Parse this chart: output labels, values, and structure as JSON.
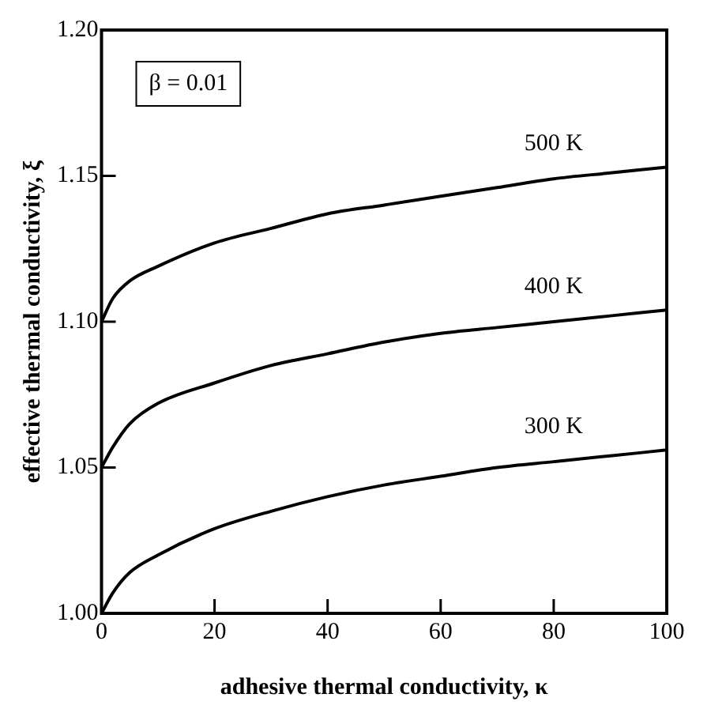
{
  "chart_data": {
    "type": "line",
    "xlabel": "adhesive thermal conductivity, κ",
    "ylabel": "effective thermal conductivity, ξ",
    "xlim": [
      0,
      100
    ],
    "xticks": [
      0,
      20,
      40,
      60,
      80,
      100
    ],
    "ylim": [
      1.0,
      1.2
    ],
    "yticks": [
      {
        "value": 1.0,
        "label": "1.00"
      },
      {
        "value": 1.05,
        "label": "1.05"
      },
      {
        "value": 1.1,
        "label": "1.10"
      },
      {
        "value": 1.15,
        "label": "1.15"
      },
      {
        "value": 1.2,
        "label": "1.20"
      }
    ],
    "grid": false,
    "legend": false,
    "marker": "none",
    "line_style": "solid",
    "series": [
      {
        "name": "300 K",
        "color": "#000000",
        "x": [
          0,
          2,
          5,
          10,
          20,
          30,
          40,
          50,
          60,
          70,
          80,
          90,
          100
        ],
        "values": [
          1.0,
          1.007,
          1.014,
          1.02,
          1.029,
          1.035,
          1.04,
          1.044,
          1.047,
          1.05,
          1.052,
          1.054,
          1.056
        ]
      },
      {
        "name": "400 K",
        "color": "#000000",
        "x": [
          0,
          2,
          5,
          10,
          20,
          30,
          40,
          50,
          60,
          70,
          80,
          90,
          100
        ],
        "values": [
          1.05,
          1.057,
          1.065,
          1.072,
          1.079,
          1.085,
          1.089,
          1.093,
          1.096,
          1.098,
          1.1,
          1.102,
          1.104
        ]
      },
      {
        "name": "500 K",
        "color": "#000000",
        "x": [
          0,
          2,
          5,
          10,
          20,
          30,
          40,
          50,
          60,
          70,
          80,
          90,
          100
        ],
        "values": [
          1.1,
          1.108,
          1.114,
          1.119,
          1.127,
          1.132,
          1.137,
          1.14,
          1.143,
          1.146,
          1.149,
          1.151,
          1.153
        ]
      }
    ],
    "annotations": [
      "β = 0.01"
    ]
  }
}
